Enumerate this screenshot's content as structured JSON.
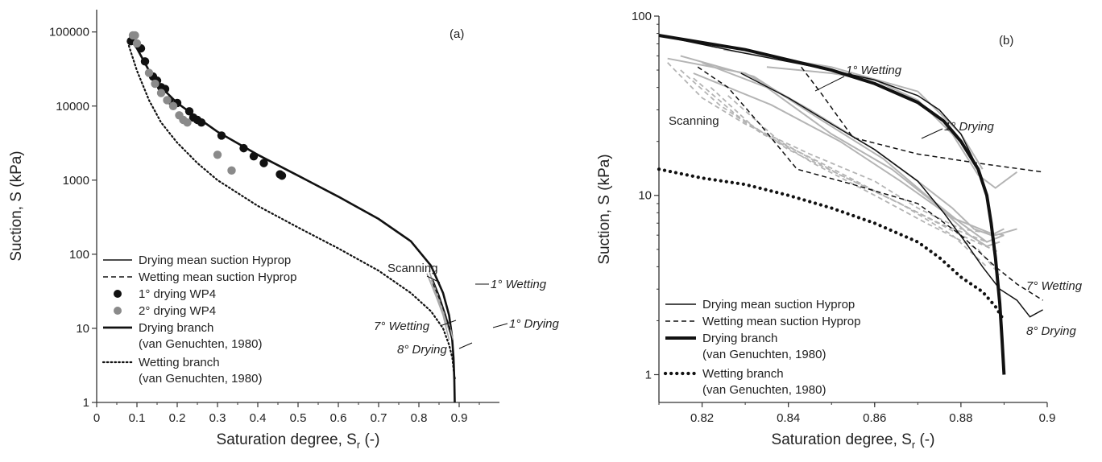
{
  "chart_data": [
    {
      "type": "scatter",
      "panel": "(a)",
      "xlabel": "Saturation degree, S",
      "xlabel_sub": "r",
      "xlabel_unit": " (-)",
      "ylabel": "Suction, S (kPa)",
      "xlim": [
        0,
        1.0
      ],
      "ylim": [
        1,
        200000
      ],
      "yscale": "log",
      "xticks": [
        "0",
        "0.1",
        "0.2",
        "0.3",
        "0.4",
        "0.5",
        "0.6",
        "0.7",
        "0.8",
        "0.9"
      ],
      "yticks": [
        "1",
        "10",
        "100",
        "1000",
        "10000",
        "100000"
      ],
      "legend": [
        {
          "label": "Drying mean suction Hyprop",
          "style": "solid"
        },
        {
          "label": "Wetting mean suction Hyprop",
          "style": "dashed"
        },
        {
          "label": "1° drying WP4",
          "style": "dot-black"
        },
        {
          "label": "2° drying WP4",
          "style": "dot-gray"
        },
        {
          "label": "Drying branch",
          "label2": "(van Genuchten, 1980)",
          "style": "thick"
        },
        {
          "label": "Wetting branch",
          "label2": "(van Genuchten, 1980)",
          "style": "dotted"
        }
      ],
      "annotations": {
        "scanning": "Scanning",
        "wetting1": "1° Wetting",
        "drying1": "1° Drying",
        "wetting7": "7° Wetting",
        "drying8": "8° Drying"
      },
      "series": [
        {
          "name": "1° drying WP4",
          "color": "#111111",
          "points": [
            [
              0.085,
              75000
            ],
            [
              0.11,
              60000
            ],
            [
              0.12,
              40000
            ],
            [
              0.14,
              25000
            ],
            [
              0.15,
              22000
            ],
            [
              0.16,
              18000
            ],
            [
              0.17,
              17000
            ],
            [
              0.18,
              12000
            ],
            [
              0.2,
              11000
            ],
            [
              0.23,
              8500
            ],
            [
              0.24,
              7000
            ],
            [
              0.25,
              6500
            ],
            [
              0.26,
              6000
            ],
            [
              0.31,
              4000
            ],
            [
              0.365,
              2700
            ],
            [
              0.39,
              2100
            ],
            [
              0.415,
              1700
            ],
            [
              0.455,
              1200
            ],
            [
              0.46,
              1150
            ]
          ]
        },
        {
          "name": "2° drying WP4",
          "color": "#8a8a8a",
          "points": [
            [
              0.09,
              90000
            ],
            [
              0.095,
              90000
            ],
            [
              0.1,
              70000
            ],
            [
              0.13,
              28000
            ],
            [
              0.145,
              20000
            ],
            [
              0.16,
              15000
            ],
            [
              0.175,
              12000
            ],
            [
              0.19,
              10000
            ],
            [
              0.205,
              7500
            ],
            [
              0.215,
              6500
            ],
            [
              0.225,
              6000
            ],
            [
              0.3,
              2200
            ],
            [
              0.335,
              1350
            ]
          ]
        },
        {
          "name": "Drying branch",
          "style": "solid",
          "points": [
            [
              0.083,
              80000
            ],
            [
              0.1,
              60000
            ],
            [
              0.13,
              30000
            ],
            [
              0.16,
              18000
            ],
            [
              0.2,
              11000
            ],
            [
              0.25,
              7000
            ],
            [
              0.3,
              4500
            ],
            [
              0.4,
              2200
            ],
            [
              0.5,
              1150
            ],
            [
              0.6,
              600
            ],
            [
              0.7,
              300
            ],
            [
              0.78,
              150
            ],
            [
              0.83,
              70
            ],
            [
              0.86,
              30
            ],
            [
              0.875,
              15
            ],
            [
              0.882,
              8
            ],
            [
              0.886,
              4
            ],
            [
              0.888,
              2
            ],
            [
              0.889,
              1
            ]
          ]
        },
        {
          "name": "Wetting branch",
          "style": "dotted",
          "points": [
            [
              0.08,
              65000
            ],
            [
              0.1,
              30000
            ],
            [
              0.13,
              12000
            ],
            [
              0.16,
              6000
            ],
            [
              0.2,
              3200
            ],
            [
              0.25,
              1700
            ],
            [
              0.3,
              1000
            ],
            [
              0.4,
              450
            ],
            [
              0.5,
              230
            ],
            [
              0.6,
              120
            ],
            [
              0.7,
              60
            ],
            [
              0.78,
              30
            ],
            [
              0.83,
              17
            ],
            [
              0.86,
              10
            ],
            [
              0.875,
              6
            ],
            [
              0.883,
              4
            ],
            [
              0.887,
              2.5
            ],
            [
              0.89,
              2
            ]
          ]
        }
      ]
    },
    {
      "type": "line",
      "panel": "(b)",
      "xlabel": "Saturation degree, S",
      "xlabel_sub": "r",
      "xlabel_unit": " (-)",
      "ylabel": "Suction, S (kPa)",
      "xlim": [
        0.81,
        0.9
      ],
      "ylim": [
        0.7,
        100
      ],
      "yscale": "log",
      "xticks": [
        "0.82",
        "0.84",
        "0.86",
        "0.88",
        "0.9"
      ],
      "yticks": [
        "1",
        "10",
        "100"
      ],
      "legend": [
        {
          "label": "Drying mean suction Hyprop",
          "style": "solid"
        },
        {
          "label": "Wetting mean suction Hyprop",
          "style": "dashed"
        },
        {
          "label": "Drying branch",
          "label2": "(van Genuchten, 1980)",
          "style": "thick"
        },
        {
          "label": "Wetting branch",
          "label2": "(van Genuchten, 1980)",
          "style": "dotted"
        }
      ],
      "annotations": {
        "scanning": "Scanning",
        "wetting1": "1° Wetting",
        "drying1": "1° Drying",
        "wetting7": "7° Wetting",
        "drying8": "8° Drying"
      },
      "series": [
        {
          "name": "Drying branch",
          "style": "thick",
          "points": [
            [
              0.81,
              78
            ],
            [
              0.83,
              65
            ],
            [
              0.85,
              50
            ],
            [
              0.86,
              42
            ],
            [
              0.87,
              33
            ],
            [
              0.876,
              26
            ],
            [
              0.88,
              20
            ],
            [
              0.884,
              14
            ],
            [
              0.886,
              10
            ],
            [
              0.887,
              7
            ],
            [
              0.888,
              4.5
            ],
            [
              0.889,
              2.5
            ],
            [
              0.8895,
              1.6
            ],
            [
              0.89,
              1
            ]
          ]
        },
        {
          "name": "Wetting branch",
          "style": "dotted",
          "points": [
            [
              0.81,
              14
            ],
            [
              0.82,
              12.5
            ],
            [
              0.83,
              11.5
            ],
            [
              0.84,
              10
            ],
            [
              0.85,
              8.5
            ],
            [
              0.86,
              7
            ],
            [
              0.87,
              5.5
            ],
            [
              0.875,
              4.5
            ],
            [
              0.88,
              3.5
            ],
            [
              0.885,
              2.9
            ],
            [
              0.888,
              2.4
            ],
            [
              0.89,
              2
            ]
          ]
        }
      ]
    }
  ]
}
